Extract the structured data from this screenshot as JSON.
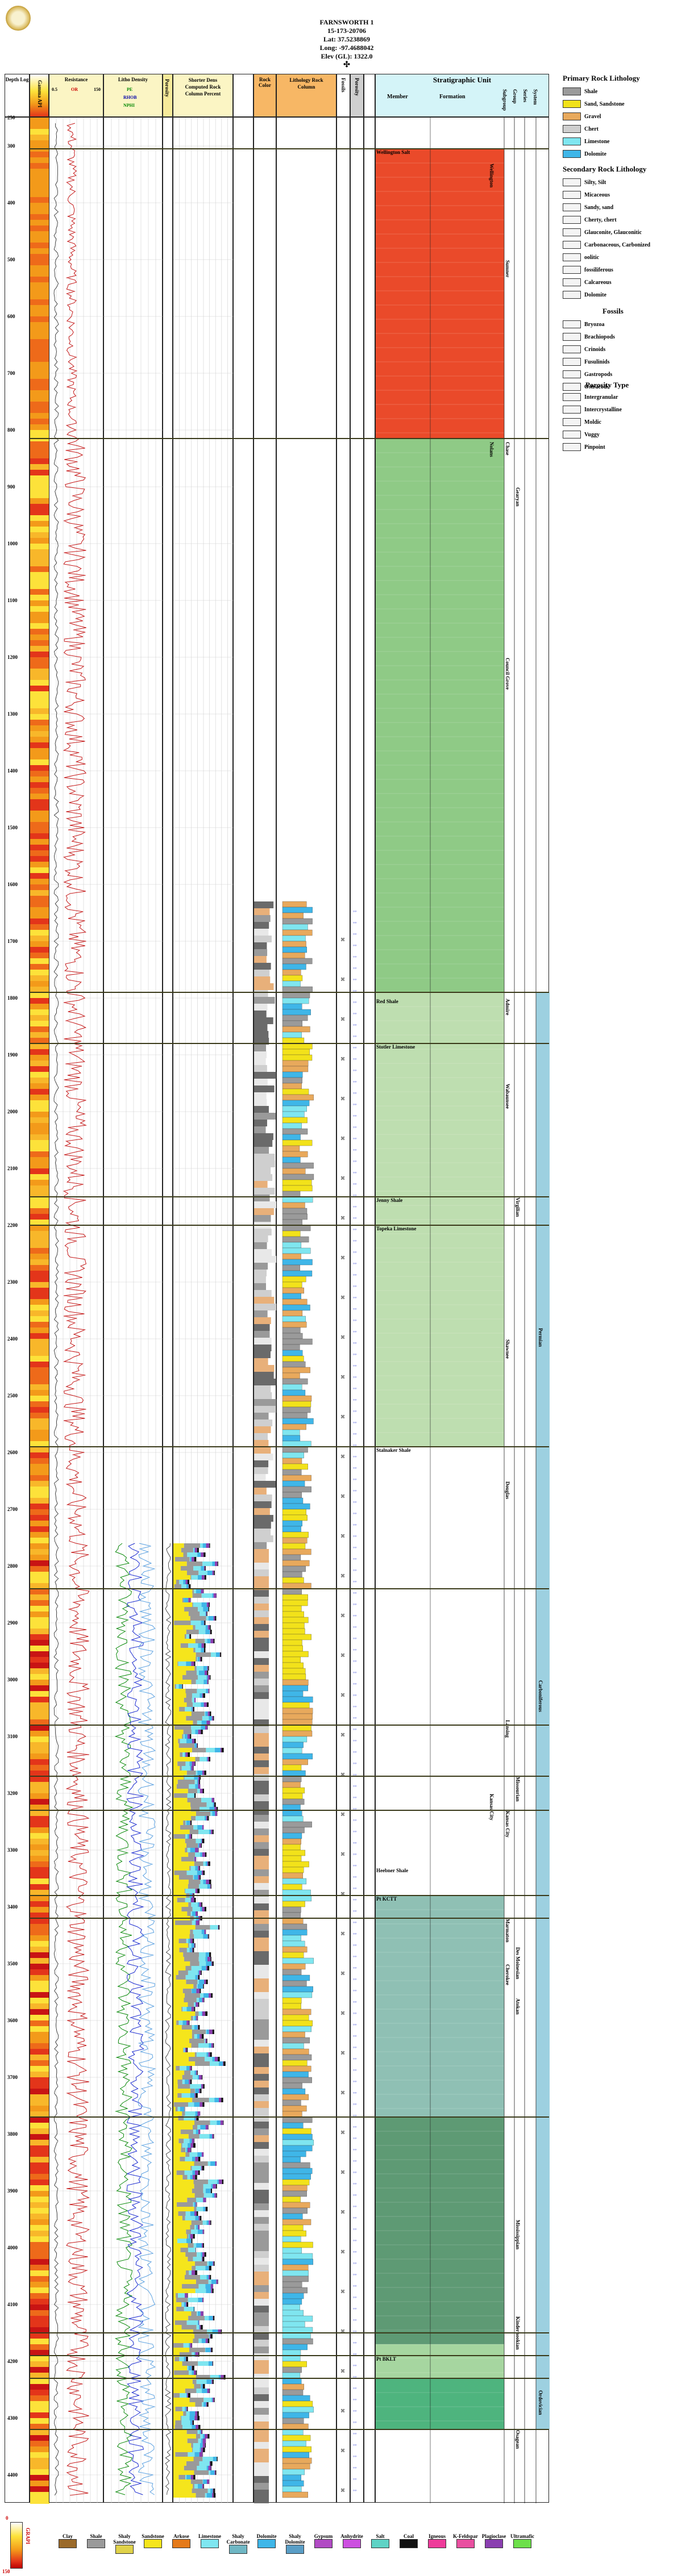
{
  "header": {
    "well_name": "FARNSWORTH 1",
    "api": "15-173-20706",
    "lat": "Lat: 37.5238869",
    "long": "Long: -97.4688042",
    "elev": "Elev (GL): 1322.0"
  },
  "columns": {
    "depth_log": "Depth Log",
    "gamma_api": "Gamma API",
    "resistance": "Resistance",
    "litho_density": "Litho Density",
    "porosity": "Porosity",
    "shorter_dens": "Shorter Dens Computed Rock Column Percent",
    "rock_color": "Rock Color",
    "lithology": "Lithology Rock Column",
    "fossils": "Fossils",
    "porosity_type": "Porosity",
    "stratigraphic_unit": "Stratigraphic Unit",
    "member": "Member",
    "formation": "Formation",
    "subgroup": "Subgroup",
    "group": "Group",
    "series": "Series",
    "system": "System"
  },
  "scales": {
    "res_min": "0.5",
    "res_unit": "OR",
    "res_max": "150",
    "pe_label": "PE",
    "rhob_label": "RHOB",
    "nphi_label": "NPHI",
    "pct_ticks": [
      "10",
      "20",
      "30",
      "40",
      "50",
      "60",
      "70",
      "80",
      "90"
    ]
  },
  "depths": [
    "250",
    "300",
    "400",
    "500",
    "600",
    "700",
    "800",
    "900",
    "1000",
    "1100",
    "1200",
    "1300",
    "1400",
    "1500",
    "1600",
    "1700",
    "1800",
    "1900",
    "2000",
    "2100",
    "2200",
    "2300",
    "2400",
    "2500",
    "2600",
    "2700",
    "2800",
    "2900",
    "3000",
    "3100",
    "3200",
    "3300",
    "3400",
    "3500",
    "3600",
    "3700",
    "3800",
    "3900",
    "4000",
    "4100",
    "4200",
    "4300",
    "4400"
  ],
  "members": [
    {
      "name": "Wellington Salt",
      "depth": 305
    },
    {
      "name": "Red Shale",
      "depth": 1800
    },
    {
      "name": "Stotler Limestone",
      "depth": 1880
    },
    {
      "name": "Jenny Shale",
      "depth": 2150
    },
    {
      "name": "Topeka Limestone",
      "depth": 2200
    },
    {
      "name": "Stalnaker Shale",
      "depth": 2590
    },
    {
      "name": "Heebner Shale",
      "depth": 3330
    },
    {
      "name": "Pt KCTT",
      "depth": 3380
    },
    {
      "name": "Pt BKLT",
      "depth": 4190
    }
  ],
  "formations": [
    {
      "name": "Wellington",
      "depth": 330
    },
    {
      "name": "Nolans",
      "depth": 820
    },
    {
      "name": "Kansas City",
      "depth": 3200
    }
  ],
  "subgroups": [
    {
      "name": "Sumner",
      "depth": 500
    },
    {
      "name": "Chase",
      "depth": 820
    },
    {
      "name": "Council Grove",
      "depth": 1200
    },
    {
      "name": "Admire",
      "depth": 1800
    },
    {
      "name": "Wabaunsee",
      "depth": 1950
    },
    {
      "name": "Shawnee",
      "depth": 2400
    },
    {
      "name": "Douglas",
      "depth": 2650
    },
    {
      "name": "Lansing",
      "depth": 3070
    },
    {
      "name": "Kansas City",
      "depth": 3230
    },
    {
      "name": "Marmaton",
      "depth": 3420
    },
    {
      "name": "Cherokee",
      "depth": 3500
    }
  ],
  "groups": [
    {
      "name": "Gearyan",
      "depth": 900
    },
    {
      "name": "Virgilian",
      "depth": 2150
    },
    {
      "name": "Missourian",
      "depth": 3170
    },
    {
      "name": "Des Moinesian",
      "depth": 3470
    },
    {
      "name": "Atokan",
      "depth": 3560
    },
    {
      "name": "Mississippian",
      "depth": 3950
    },
    {
      "name": "Kinderhookian",
      "depth": 4120
    },
    {
      "name": "Osagean",
      "depth": 4320
    }
  ],
  "systems": [
    {
      "name": "Permian",
      "depth": 2380
    },
    {
      "name": "Carboniferous",
      "depth": 3000
    },
    {
      "name": "Ordovician",
      "depth": 4250
    }
  ],
  "legend": {
    "primary_title": "Primary Rock Lithology",
    "primary": [
      {
        "label": "Shale",
        "color": "#9a9a9a"
      },
      {
        "label": "Sand, Sandstone",
        "color": "#f2e21a"
      },
      {
        "label": "Gravel",
        "color": "#e8a95c"
      },
      {
        "label": "Chert",
        "color": "#cfcfcf"
      },
      {
        "label": "Limestone",
        "color": "#7fe6f0"
      },
      {
        "label": "Dolomite",
        "color": "#3fb6e8"
      }
    ],
    "secondary_title": "Secondary Rock Lithology",
    "secondary": [
      "Silty, Silt",
      "Micaceous",
      "Sandy, sand",
      "Cherty, chert",
      "Glauconite, Glauconitic",
      "Carbonaceous, Carbonized",
      "oolitic",
      "fossiliferous",
      "Calcareous",
      "Dolomite"
    ],
    "fossils_title": "Fossils",
    "fossils": [
      "Bryozoa",
      "Brachiopods",
      "Crinoids",
      "Fusulinids",
      "Gastropods",
      "Ostracods"
    ],
    "fossil_marks": [
      "Fish",
      "Mollusc",
      "Pelecypods"
    ],
    "porosity_title": "Porosity Type",
    "porosity": [
      "Intergranular",
      "Intercrystalline",
      "Moldic",
      "Vuggy",
      "Pinpoint"
    ]
  },
  "bottom_legend": [
    {
      "label": "Clay",
      "color": "#9b6a2a"
    },
    {
      "label": "Shale",
      "color": "#9a9a9a"
    },
    {
      "label": "Shaly Sandstone",
      "color": "#e0d24a"
    },
    {
      "label": "Sandstone",
      "color": "#f5e51c"
    },
    {
      "label": "Arkose",
      "color": "#e57a1a"
    },
    {
      "label": "Limestone",
      "color": "#7fe6f0"
    },
    {
      "label": "Shaly Carbonate",
      "color": "#6fb7c4"
    },
    {
      "label": "Dolomite",
      "color": "#3fb6e8"
    },
    {
      "label": "Shaly Dolomite",
      "color": "#5a9ec6"
    },
    {
      "label": "Gypsum",
      "color": "#b14bc4"
    },
    {
      "label": "Anhydrite",
      "color": "#cc4fe0"
    },
    {
      "label": "Salt",
      "color": "#5fd3c5"
    },
    {
      "label": "Coal",
      "color": "#111111"
    },
    {
      "label": "Igneous",
      "color": "#ee3b9a"
    },
    {
      "label": "K-Feldspar",
      "color": "#e94fa0"
    },
    {
      "label": "Plagioclase",
      "color": "#8a3fb0"
    },
    {
      "label": "Ultramafic",
      "color": "#6de04a"
    }
  ],
  "gamma_scale": {
    "top": "0",
    "label": "GRAPI",
    "bottom": "150"
  }
}
